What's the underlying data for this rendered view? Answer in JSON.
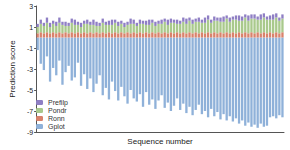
{
  "chart_data": {
    "type": "bar",
    "stacked": true,
    "grid": false,
    "legend": "lower left",
    "tick_labels": "y",
    "x_label": "Sequence number",
    "y_label": "Prediction score",
    "ylim": [
      -9,
      3
    ],
    "yticks": [
      -9,
      -7,
      -5,
      -3,
      -1,
      1,
      3
    ],
    "categories": [
      null,
      null,
      null,
      null,
      null,
      null,
      null,
      null,
      null,
      null,
      null,
      null,
      null,
      null,
      null,
      null,
      null,
      null,
      null,
      null,
      null,
      null,
      null,
      null,
      null,
      null,
      null,
      null,
      null,
      null,
      null,
      null,
      null,
      null,
      null,
      null,
      null,
      null,
      null,
      null,
      null,
      null,
      null,
      null,
      null,
      null,
      null,
      null,
      null,
      null,
      null,
      null,
      null,
      null,
      null,
      null,
      null,
      null,
      null,
      null,
      null,
      null,
      null,
      null,
      null,
      null,
      null,
      null,
      null,
      null,
      null,
      null,
      null,
      null,
      null,
      null,
      null,
      null,
      null,
      null
    ],
    "series": [
      {
        "name": "Prefilp",
        "color": "#8f7fc4",
        "values": [
          0.3,
          0.4,
          0.3,
          0.5,
          0.4,
          0.3,
          0.4,
          0.5,
          0.3,
          0.4,
          0.3,
          0.4,
          0.5,
          0.3,
          0.4,
          0.3,
          0.4,
          0.3,
          0.5,
          0.4,
          0.3,
          0.4,
          0.3,
          0.4,
          0.5,
          0.3,
          0.4,
          0.3,
          0.4,
          0.3,
          0.5,
          0.4,
          0.3,
          0.4,
          0.3,
          0.4,
          0.5,
          0.3,
          0.4,
          0.3,
          0.4,
          0.3,
          0.5,
          0.4,
          0.3,
          0.4,
          0.3,
          0.4,
          0.5,
          0.3,
          0.4,
          0.3,
          0.4,
          0.3,
          0.5,
          0.4,
          0.3,
          0.4,
          0.3,
          0.4,
          0.5,
          0.3,
          0.4,
          0.3,
          0.4,
          0.5,
          0.4,
          0.3,
          0.5,
          0.4,
          0.4,
          0.3,
          0.5,
          0.4,
          0.3,
          0.4,
          0.5,
          0.4,
          0.3,
          0.4
        ]
      },
      {
        "name": "Pondr",
        "color": "#a9c98c",
        "values": [
          0.6,
          0.8,
          0.7,
          0.9,
          0.6,
          0.8,
          0.7,
          0.9,
          0.8,
          0.6,
          0.7,
          0.9,
          0.8,
          0.7,
          0.6,
          0.8,
          0.9,
          0.7,
          0.8,
          0.6,
          0.7,
          0.9,
          0.8,
          0.7,
          0.8,
          0.9,
          0.7,
          0.8,
          0.6,
          0.7,
          0.9,
          0.8,
          0.7,
          0.8,
          0.9,
          0.7,
          0.8,
          0.9,
          0.7,
          0.8,
          0.9,
          1.0,
          0.8,
          0.9,
          1.0,
          0.8,
          0.9,
          1.0,
          0.9,
          1.1,
          0.9,
          1.0,
          1.1,
          0.9,
          1.0,
          1.2,
          1.0,
          1.1,
          1.2,
          1.0,
          1.1,
          1.3,
          1.1,
          1.2,
          1.3,
          1.1,
          1.2,
          1.4,
          1.2,
          1.3,
          1.4,
          1.2,
          1.3,
          1.4,
          1.3,
          1.2,
          1.3,
          1.4,
          1.2,
          1.3
        ]
      },
      {
        "name": "Ronn",
        "color": "#d9826b",
        "values": [
          0.4,
          0.5,
          0.4,
          0.5,
          0.4,
          0.5,
          0.4,
          0.5,
          0.4,
          0.5,
          0.4,
          0.5,
          0.4,
          0.5,
          0.4,
          0.5,
          0.4,
          0.5,
          0.4,
          0.5,
          0.4,
          0.5,
          0.4,
          0.5,
          0.4,
          0.5,
          0.4,
          0.5,
          0.4,
          0.5,
          0.4,
          0.5,
          0.4,
          0.5,
          0.4,
          0.5,
          0.4,
          0.5,
          0.4,
          0.5,
          0.4,
          0.5,
          0.4,
          0.5,
          0.4,
          0.5,
          0.4,
          0.5,
          0.4,
          0.5,
          0.4,
          0.5,
          0.4,
          0.5,
          0.4,
          0.5,
          0.4,
          0.5,
          0.4,
          0.5,
          0.4,
          0.5,
          0.4,
          0.5,
          0.4,
          0.5,
          0.4,
          0.5,
          0.4,
          0.5,
          0.4,
          0.5,
          0.4,
          0.5,
          0.4,
          0.5,
          0.4,
          0.5,
          0.4,
          0.5
        ]
      },
      {
        "name": "Gplot",
        "color": "#8fb1d9",
        "values": [
          -1.2,
          -2.5,
          -3.1,
          -1.8,
          -4.2,
          -2.9,
          -3.6,
          -2.2,
          -4.5,
          -3.3,
          -2.7,
          -4.1,
          -3.8,
          -2.4,
          -4.6,
          -3.5,
          -4.9,
          -3.9,
          -5.2,
          -4.4,
          -3.6,
          -5.5,
          -4.8,
          -5.9,
          -4.2,
          -5.1,
          -6.0,
          -4.7,
          -5.6,
          -6.3,
          -5.0,
          -5.8,
          -6.1,
          -5.4,
          -6.6,
          -5.2,
          -6.4,
          -5.9,
          -6.8,
          -6.0,
          -5.5,
          -6.7,
          -6.2,
          -7.0,
          -6.5,
          -5.8,
          -6.9,
          -6.3,
          -7.2,
          -6.6,
          -7.4,
          -6.9,
          -6.4,
          -7.3,
          -7.0,
          -7.6,
          -6.8,
          -7.5,
          -7.1,
          -7.8,
          -7.3,
          -7.9,
          -7.5,
          -8.0,
          -7.7,
          -8.2,
          -7.9,
          -8.4,
          -8.1,
          -8.5,
          -8.3,
          -8.6,
          -8.2,
          -8.5,
          -8.4,
          -7.6,
          -7.5,
          -7.7,
          -7.4,
          -7.6
        ]
      }
    ]
  }
}
